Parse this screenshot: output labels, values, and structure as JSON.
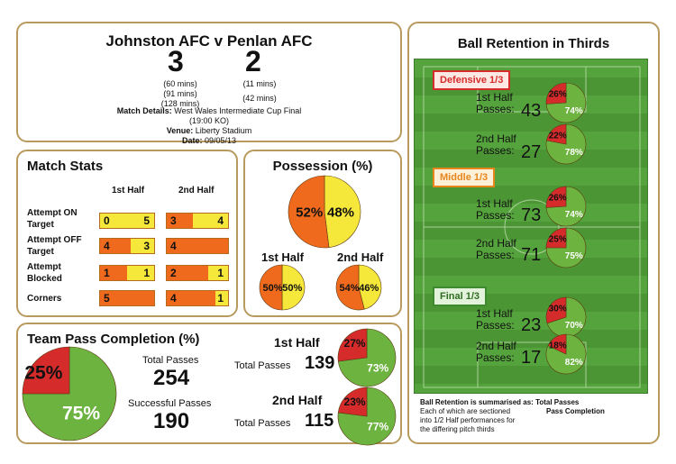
{
  "header": {
    "title": "Johnston AFC v Penlan AFC",
    "home_score": "3",
    "away_score": "2",
    "home_goals": [
      "(60 mins)",
      "(91 mins)",
      "(128 mins)"
    ],
    "away_goals": [
      "(11 mins)",
      "(42 mins)"
    ],
    "details_label": "Match Details:",
    "details_value": "West Wales Intermediate Cup Final",
    "kickoff": "(19:00 KO)",
    "venue_label": "Venue:",
    "venue_value": "Liberty Stadium",
    "date_label": "Date:",
    "date_value": "09/05/13"
  },
  "match_stats": {
    "title": "Match Stats",
    "col1": "1st Half",
    "col2": "2nd Half",
    "rows": [
      {
        "label_lines": [
          "Attempt ON",
          "Target"
        ],
        "h1": [
          0,
          5
        ],
        "h2": [
          3,
          4
        ]
      },
      {
        "label_lines": [
          "Attempt OFF",
          "Target"
        ],
        "h1": [
          4,
          3
        ],
        "h2": [
          4,
          0
        ]
      },
      {
        "label_lines": [
          "Attempt",
          "Blocked"
        ],
        "h1": [
          1,
          1
        ],
        "h2": [
          2,
          1
        ]
      },
      {
        "label_lines": [
          "Corners"
        ],
        "h1": [
          5,
          0
        ],
        "h2": [
          4,
          1
        ]
      }
    ],
    "texts": {
      "r0h1l": "0",
      "r0h1r": "5",
      "r0h2l": "3",
      "r0h2r": "4",
      "r1h1l": "4",
      "r1h1r": "3",
      "r1h2l": "4",
      "r2h1l": "1",
      "r2h1r": "1",
      "r2h2l": "2",
      "r2h2r": "1",
      "r3h1l": "5",
      "r3h2l": "4",
      "r3h2r": "1"
    }
  },
  "possession": {
    "title": "Possession (%)",
    "total": {
      "home": 52,
      "away": 48,
      "home_label": "52%",
      "away_label": "48%"
    },
    "first_half": {
      "label": "1st Half",
      "home": 50,
      "away": 50,
      "home_label": "50%",
      "away_label": "50%"
    },
    "second_half": {
      "label": "2nd Half",
      "home": 54,
      "away": 46,
      "home_label": "54%",
      "away_label": "46%"
    }
  },
  "pass_completion": {
    "title": "Team Pass Completion (%)",
    "overall": {
      "fail": 25,
      "success": 75,
      "fail_label": "25%",
      "success_label": "75%"
    },
    "total_passes_label": "Total Passes",
    "total_passes": "254",
    "successful_passes_label": "Successful Passes",
    "successful_passes": "190",
    "halves": [
      {
        "label": "1st Half",
        "total_label": "Total Passes",
        "total": "139",
        "fail": 27,
        "success": 73,
        "fail_label": "27%",
        "success_label": "73%"
      },
      {
        "label": "2nd Half",
        "total_label": "Total Passes",
        "total": "115",
        "fail": 23,
        "success": 77,
        "fail_label": "23%",
        "success_label": "77%"
      }
    ]
  },
  "retention": {
    "title": "Ball Retention in Thirds",
    "half1_label": "1st Half",
    "half2_label": "2nd Half",
    "passes_label": "Passes:",
    "thirds": [
      {
        "name": "Defensive 1/3",
        "h1": {
          "passes": "43",
          "fail": 26,
          "success": 74,
          "fail_label": "26%",
          "success_label": "74%"
        },
        "h2": {
          "passes": "27",
          "fail": 22,
          "success": 78,
          "fail_label": "22%",
          "success_label": "78%"
        }
      },
      {
        "name": "Middle 1/3",
        "h1": {
          "passes": "73",
          "fail": 26,
          "success": 74,
          "fail_label": "26%",
          "success_label": "74%"
        },
        "h2": {
          "passes": "71",
          "fail": 25,
          "success": 75,
          "fail_label": "25%",
          "success_label": "75%"
        }
      },
      {
        "name": "Final 1/3",
        "h1": {
          "passes": "23",
          "fail": 30,
          "success": 70,
          "fail_label": "30%",
          "success_label": "70%"
        },
        "h2": {
          "passes": "17",
          "fail": 18,
          "success": 82,
          "fail_label": "18%",
          "success_label": "82%"
        }
      }
    ],
    "note_title": "Ball Retention is summarised as:",
    "note_total": "Total Passes",
    "note_pass": "Pass Completion",
    "note_lines": [
      "Each of which are sectioned",
      "into 1/2 Half performances for",
      "the differing pitch thirds"
    ]
  },
  "colors": {
    "orange": "#ef6a1c",
    "yellow": "#f6e83a",
    "red": "#d62b2b",
    "green": "#6db33f",
    "panel_border": "#b89a5e"
  }
}
